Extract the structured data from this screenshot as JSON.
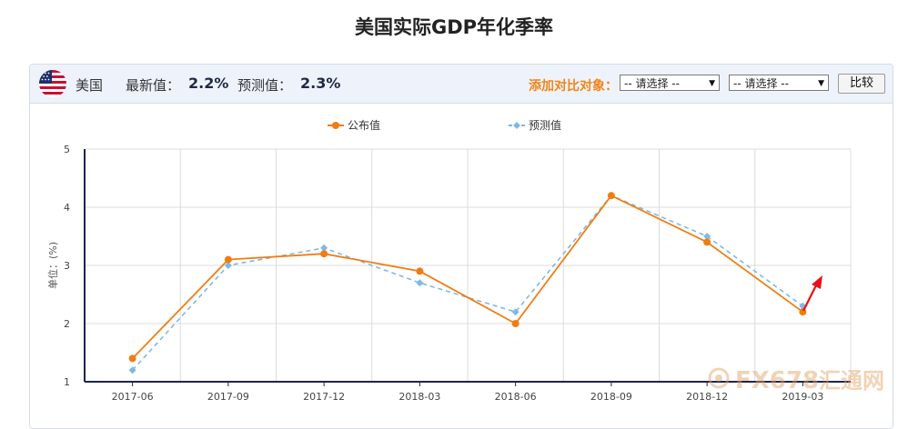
{
  "page_title": "美国实际GDP年化季率",
  "header": {
    "country": "美国",
    "latest_label": "最新值：",
    "latest_value": "2.2%",
    "forecast_label": "预测值：",
    "forecast_value": "2.3%",
    "compare_label": "添加对比对象：",
    "select1": "-- 请选择 --",
    "select2": "-- 请选择 --",
    "compare_button": "比较",
    "flag_icon": "us-flag-icon"
  },
  "watermark": {
    "text": "FX678",
    "text2": "汇通网"
  },
  "colors": {
    "actual": "#f07d12",
    "forecast": "#7fb8e6",
    "arrow": "#e8101a",
    "accent": "#f08519"
  },
  "chart_data": {
    "type": "line",
    "categories": [
      "2017-06",
      "2017-09",
      "2017-12",
      "2018-03",
      "2018-06",
      "2018-09",
      "2018-12",
      "2019-03"
    ],
    "series": [
      {
        "name": "公布值",
        "values": [
          1.4,
          3.1,
          3.2,
          2.9,
          2.0,
          4.2,
          3.4,
          2.2
        ],
        "style": "solid",
        "marker": "circle"
      },
      {
        "name": "预测值",
        "values": [
          1.2,
          3.0,
          3.3,
          2.7,
          2.2,
          4.2,
          3.5,
          2.3
        ],
        "style": "dashed",
        "marker": "diamond"
      }
    ],
    "ylabel": "单位：(%)",
    "ylim": [
      1,
      5
    ],
    "yticks": [
      "1",
      "2",
      "3",
      "4",
      "5"
    ],
    "grid": true,
    "legend": "top-center"
  }
}
